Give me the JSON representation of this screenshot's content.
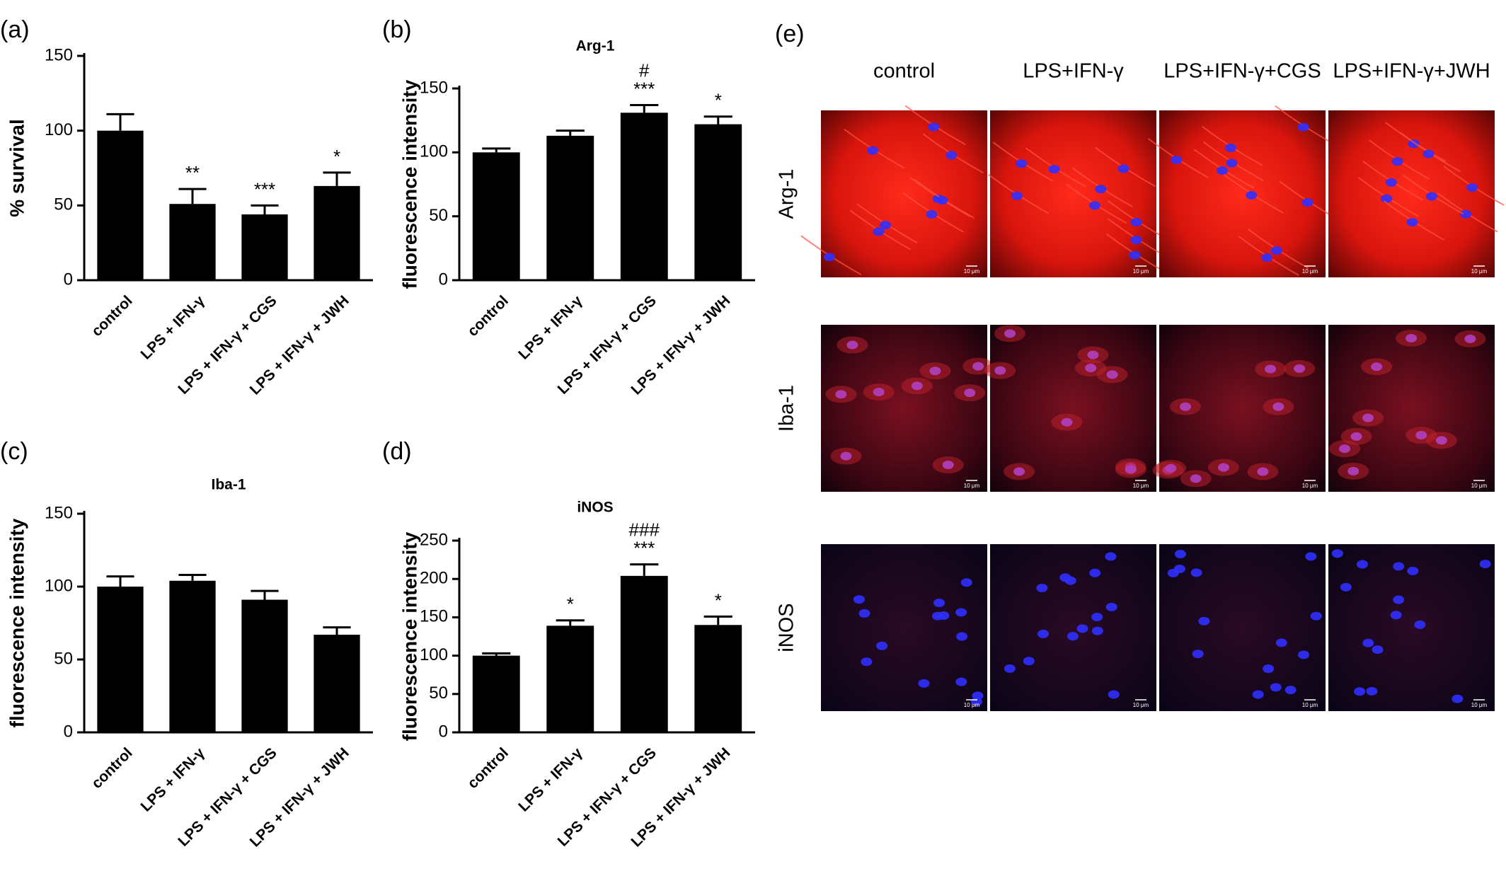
{
  "chart_data": [
    {
      "type": "bar",
      "panel_label": "(a)",
      "ylabel": "% survival",
      "categories": [
        "control",
        "LPS + IFN-γ",
        "LPS + IFN-γ + CGS",
        "LPS + IFN-γ + JWH"
      ],
      "values": [
        100,
        51,
        44,
        63
      ],
      "errors": [
        11,
        10,
        6,
        9
      ],
      "significance": [
        null,
        "**",
        "***",
        "*"
      ],
      "color": "#000000",
      "ylim": [
        0,
        150
      ],
      "yticks": [
        0,
        50,
        100,
        150
      ]
    },
    {
      "type": "bar",
      "panel_label": "(b)",
      "title": "Arg-1",
      "ylabel": "fluorescence intensity",
      "categories": [
        "control",
        "LPS + IFN-γ",
        "LPS + IFN-γ + CGS",
        "LPS + IFN-γ + JWH"
      ],
      "values": [
        100,
        113,
        131,
        122
      ],
      "errors": [
        3,
        4,
        6,
        6
      ],
      "significance": [
        null,
        null,
        "***",
        "*"
      ],
      "significance_vs_lps": [
        null,
        null,
        "#",
        null
      ],
      "color": "#000000",
      "ylim": [
        0,
        150
      ],
      "yticks": [
        0,
        50,
        100,
        150
      ]
    },
    {
      "type": "bar",
      "panel_label": "(c)",
      "title": "Iba-1",
      "ylabel": "fluorescence intensity",
      "categories": [
        "control",
        "LPS + IFN-γ",
        "LPS + IFN-γ + CGS",
        "LPS + IFN-γ + JWH"
      ],
      "values": [
        100,
        104,
        91,
        67
      ],
      "errors": [
        7,
        4,
        6,
        5
      ],
      "color": "#000000",
      "ylim": [
        0,
        150
      ],
      "yticks": [
        0,
        50,
        100,
        150
      ]
    },
    {
      "type": "bar",
      "panel_label": "(d)",
      "title": "iNOS",
      "ylabel": "fluorescence intensity",
      "categories": [
        "control",
        "LPS + IFN-γ",
        "LPS + IFN-γ + CGS",
        "LPS + IFN-γ + JWH"
      ],
      "values": [
        100,
        139,
        204,
        140
      ],
      "errors": [
        3,
        7,
        15,
        11
      ],
      "significance": [
        null,
        "*",
        "***",
        "*"
      ],
      "significance_vs_lps": [
        null,
        null,
        "###",
        null
      ],
      "color": "#000000",
      "ylim": [
        0,
        250
      ],
      "yticks": [
        0,
        50,
        100,
        150,
        200,
        250
      ]
    }
  ],
  "panel_e": {
    "panel_label": "(e)",
    "columns": [
      "control",
      "LPS+IFN-γ",
      "LPS+IFN-γ+CGS",
      "LPS+IFN-γ+JWH"
    ],
    "rows": [
      "Arg-1",
      "Iba-1",
      "iNOS"
    ],
    "scale_bar": "10 μm"
  }
}
